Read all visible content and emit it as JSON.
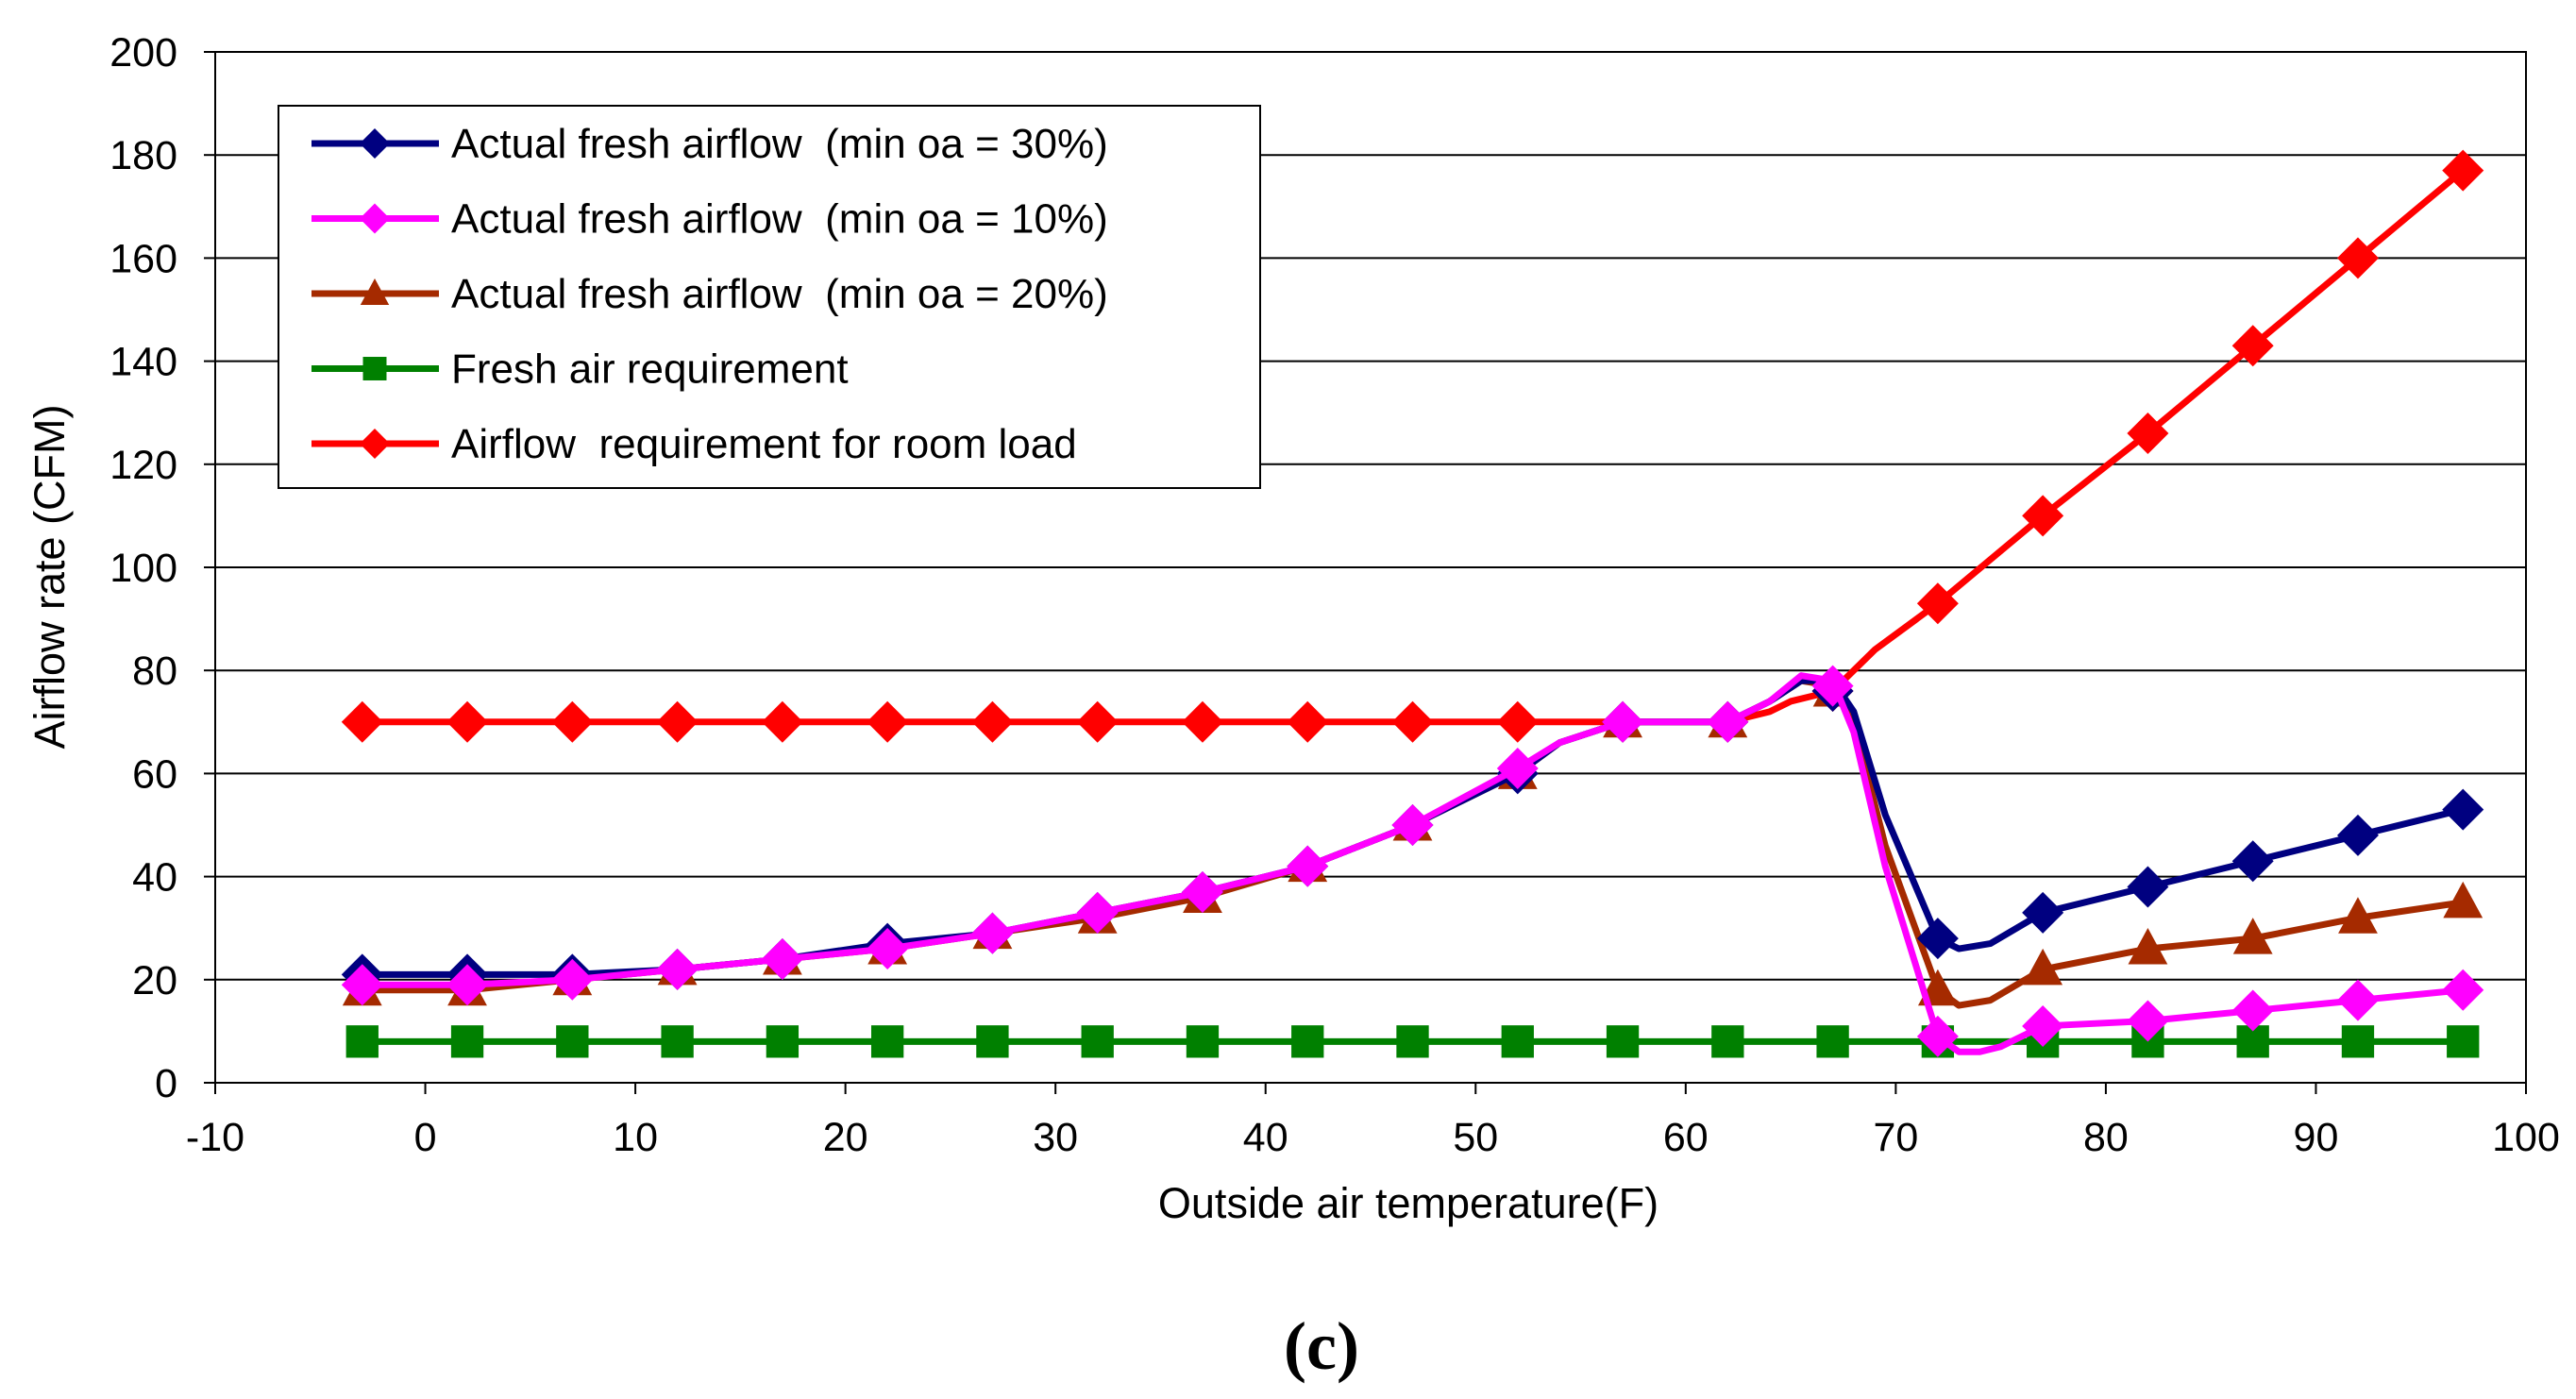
{
  "chart_data": {
    "type": "line",
    "title": "",
    "xlabel": "Outside air temperature(F)",
    "ylabel": "Airflow rate (CFM)",
    "xlim": [
      -10,
      100
    ],
    "ylim": [
      0,
      200
    ],
    "xticks": [
      -10,
      0,
      10,
      20,
      30,
      40,
      50,
      60,
      70,
      80,
      90,
      100
    ],
    "yticks": [
      0,
      20,
      40,
      60,
      80,
      100,
      120,
      140,
      160,
      180,
      200
    ],
    "grid": "horizontal",
    "legend_position": "top-left",
    "caption": "(c)",
    "series": [
      {
        "name": "Actual fresh airflow  (min oa = 30%)",
        "color": "#000080",
        "marker": "diamond",
        "x": [
          -3,
          2,
          7,
          12,
          17,
          22,
          27,
          32,
          37,
          42,
          47,
          52,
          57,
          62,
          67,
          72,
          77,
          82,
          87,
          92,
          97
        ],
        "y": [
          21,
          21,
          21,
          22,
          24,
          27,
          29,
          33,
          37,
          42,
          50,
          60,
          70,
          70,
          76,
          28,
          33,
          38,
          43,
          48,
          53
        ],
        "line_x": [
          -3,
          2,
          7,
          12,
          17,
          22,
          27,
          32,
          37,
          42,
          47,
          52,
          54,
          57,
          62,
          64,
          65.5,
          67,
          68,
          69.5,
          72,
          73,
          74.5,
          77,
          82,
          87,
          92,
          97
        ],
        "line_y": [
          21,
          21,
          21,
          22,
          24,
          27,
          29,
          33,
          37,
          42,
          50,
          60,
          66,
          70,
          70,
          74,
          78,
          78,
          72,
          52,
          28,
          26,
          27,
          33,
          38,
          43,
          48,
          53
        ]
      },
      {
        "name": "Actual fresh airflow  (min oa = 10%)",
        "color": "#FF00FF",
        "marker": "diamond",
        "x": [
          -3,
          2,
          7,
          12,
          17,
          22,
          27,
          32,
          37,
          42,
          47,
          52,
          57,
          62,
          67,
          72,
          77,
          82,
          87,
          92,
          97
        ],
        "y": [
          19,
          19,
          20,
          22,
          24,
          26,
          29,
          33,
          37,
          42,
          50,
          61,
          70,
          70,
          77,
          9,
          11,
          12,
          14,
          16,
          18
        ],
        "line_x": [
          -3,
          2,
          7,
          12,
          17,
          22,
          27,
          32,
          37,
          42,
          47,
          52,
          54,
          57,
          62,
          64,
          65.5,
          67,
          68,
          69.5,
          72,
          73,
          74,
          75,
          77,
          82,
          87,
          92,
          97
        ],
        "line_y": [
          19,
          19,
          20,
          22,
          24,
          26,
          29,
          33,
          37,
          42,
          50,
          61,
          66,
          70,
          70,
          74,
          79,
          78,
          68,
          42,
          9,
          6,
          6,
          7,
          11,
          12,
          14,
          16,
          18
        ]
      },
      {
        "name": "Actual fresh airflow  (min oa = 20%)",
        "color": "#A52A00",
        "marker": "triangle",
        "x": [
          -3,
          2,
          7,
          12,
          17,
          22,
          27,
          32,
          37,
          42,
          47,
          52,
          57,
          62,
          67,
          72,
          77,
          82,
          87,
          92,
          97
        ],
        "y": [
          18,
          18,
          20,
          22,
          24,
          26,
          29,
          32,
          36,
          42,
          50,
          60,
          70,
          70,
          76,
          18,
          22,
          26,
          28,
          32,
          35
        ],
        "line_x": [
          -3,
          2,
          7,
          12,
          17,
          22,
          27,
          32,
          37,
          42,
          47,
          52,
          54,
          57,
          62,
          64,
          65.5,
          67,
          68,
          69.5,
          72,
          73,
          74.5,
          77,
          82,
          87,
          92,
          97
        ],
        "line_y": [
          18,
          18,
          20,
          22,
          24,
          26,
          29,
          32,
          36,
          42,
          50,
          60,
          66,
          70,
          70,
          74,
          78,
          77,
          70,
          46,
          18,
          15,
          16,
          22,
          26,
          28,
          32,
          35
        ]
      },
      {
        "name": "Fresh air requirement",
        "color": "#008000",
        "marker": "square",
        "x": [
          -3,
          2,
          7,
          12,
          17,
          22,
          27,
          32,
          37,
          42,
          47,
          52,
          57,
          62,
          67,
          72,
          77,
          82,
          87,
          92,
          97
        ],
        "y": [
          8,
          8,
          8,
          8,
          8,
          8,
          8,
          8,
          8,
          8,
          8,
          8,
          8,
          8,
          8,
          8,
          8,
          8,
          8,
          8,
          8
        ],
        "line_x": [
          -3,
          97
        ],
        "line_y": [
          8,
          8
        ]
      },
      {
        "name": "Airflow  requirement for room load",
        "color": "#FF0000",
        "marker": "diamond",
        "x": [
          -3,
          2,
          7,
          12,
          17,
          22,
          27,
          32,
          37,
          42,
          47,
          52,
          57,
          62,
          67,
          72,
          77,
          82,
          87,
          92,
          97
        ],
        "y": [
          70,
          70,
          70,
          70,
          70,
          70,
          70,
          70,
          70,
          70,
          70,
          70,
          70,
          70,
          76,
          93,
          110,
          126,
          143,
          160,
          177
        ],
        "line_x": [
          -3,
          2,
          7,
          12,
          17,
          22,
          27,
          32,
          37,
          42,
          47,
          52,
          57,
          62,
          64,
          65,
          66,
          67,
          69,
          72,
          77,
          82,
          87,
          92,
          97
        ],
        "line_y": [
          70,
          70,
          70,
          70,
          70,
          70,
          70,
          70,
          70,
          70,
          70,
          70,
          70,
          70,
          72,
          74,
          75,
          76,
          84,
          93,
          110,
          126,
          143,
          160,
          177
        ]
      }
    ]
  }
}
